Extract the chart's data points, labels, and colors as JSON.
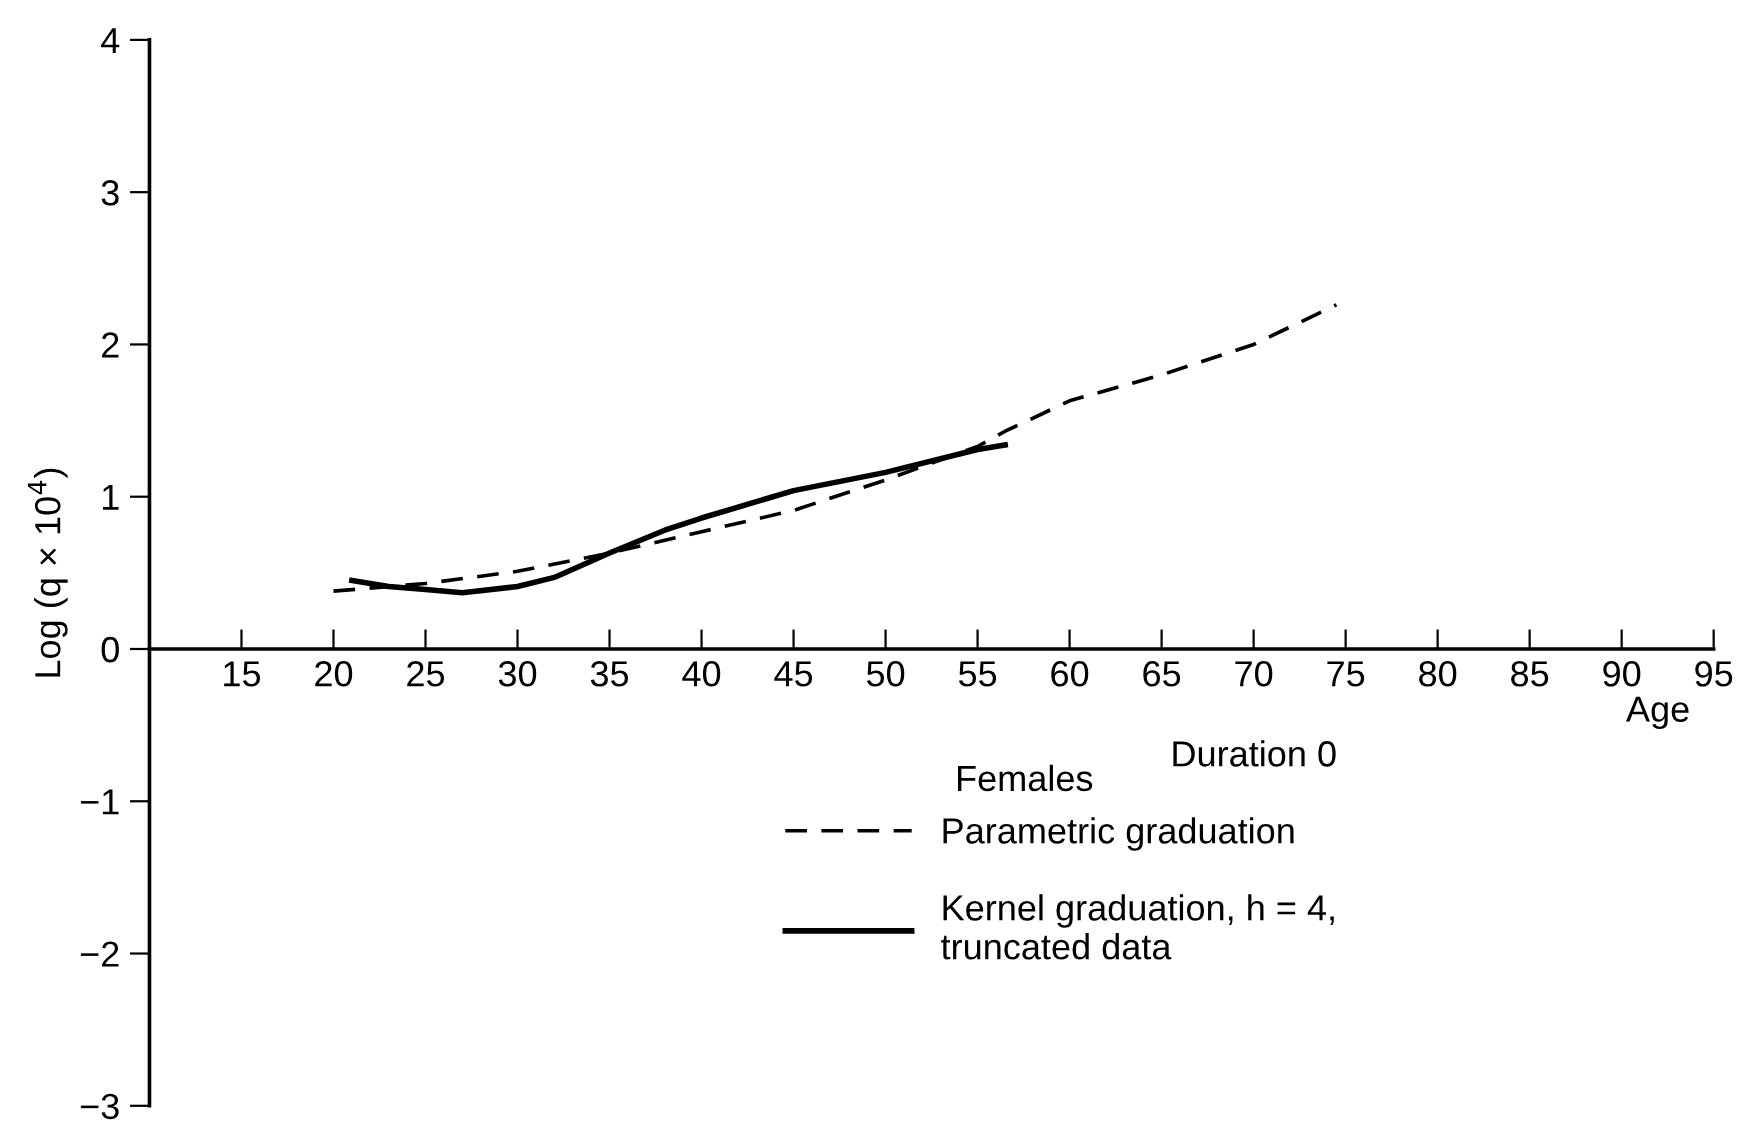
{
  "chart_data": {
    "type": "line",
    "xlabel": "Age",
    "ylabel": "Log (q × 10$^{4}$)",
    "legend_title": "Duration 0",
    "annotations": [
      "Females"
    ],
    "xlim": [
      10,
      95
    ],
    "ylim": [
      -3,
      4
    ],
    "xticks": [
      15,
      20,
      25,
      30,
      35,
      40,
      45,
      50,
      55,
      60,
      65,
      70,
      75,
      80,
      85,
      90,
      95
    ],
    "yticks": [
      {
        "value": -3,
        "label": "−3"
      },
      {
        "value": -2,
        "label": "−2"
      },
      {
        "value": -1,
        "label": "−1"
      },
      0,
      1,
      2,
      3,
      4
    ],
    "grid": false,
    "legend": "bottom right",
    "series": [
      {
        "name": "Parametric graduation",
        "color": "#000000",
        "line_style": "dashed",
        "x": [
          20,
          25,
          30,
          35,
          40,
          45,
          50,
          55,
          56.5,
          60,
          65,
          70,
          74.5
        ],
        "values": [
          0.38,
          0.43,
          0.51,
          0.63,
          0.77,
          0.91,
          1.11,
          1.33,
          1.43,
          1.63,
          1.8,
          2.0,
          2.26
        ]
      },
      {
        "name": "Kernel graduation, h = 4,\ntruncated data",
        "color": "#000000",
        "line_style": "solid",
        "x": [
          21,
          23,
          25,
          27,
          30,
          32,
          35,
          38,
          40,
          45,
          50,
          55,
          56.5
        ],
        "values": [
          0.45,
          0.41,
          0.39,
          0.37,
          0.41,
          0.47,
          0.63,
          0.78,
          0.86,
          1.04,
          1.16,
          1.31,
          1.34
        ]
      }
    ]
  }
}
